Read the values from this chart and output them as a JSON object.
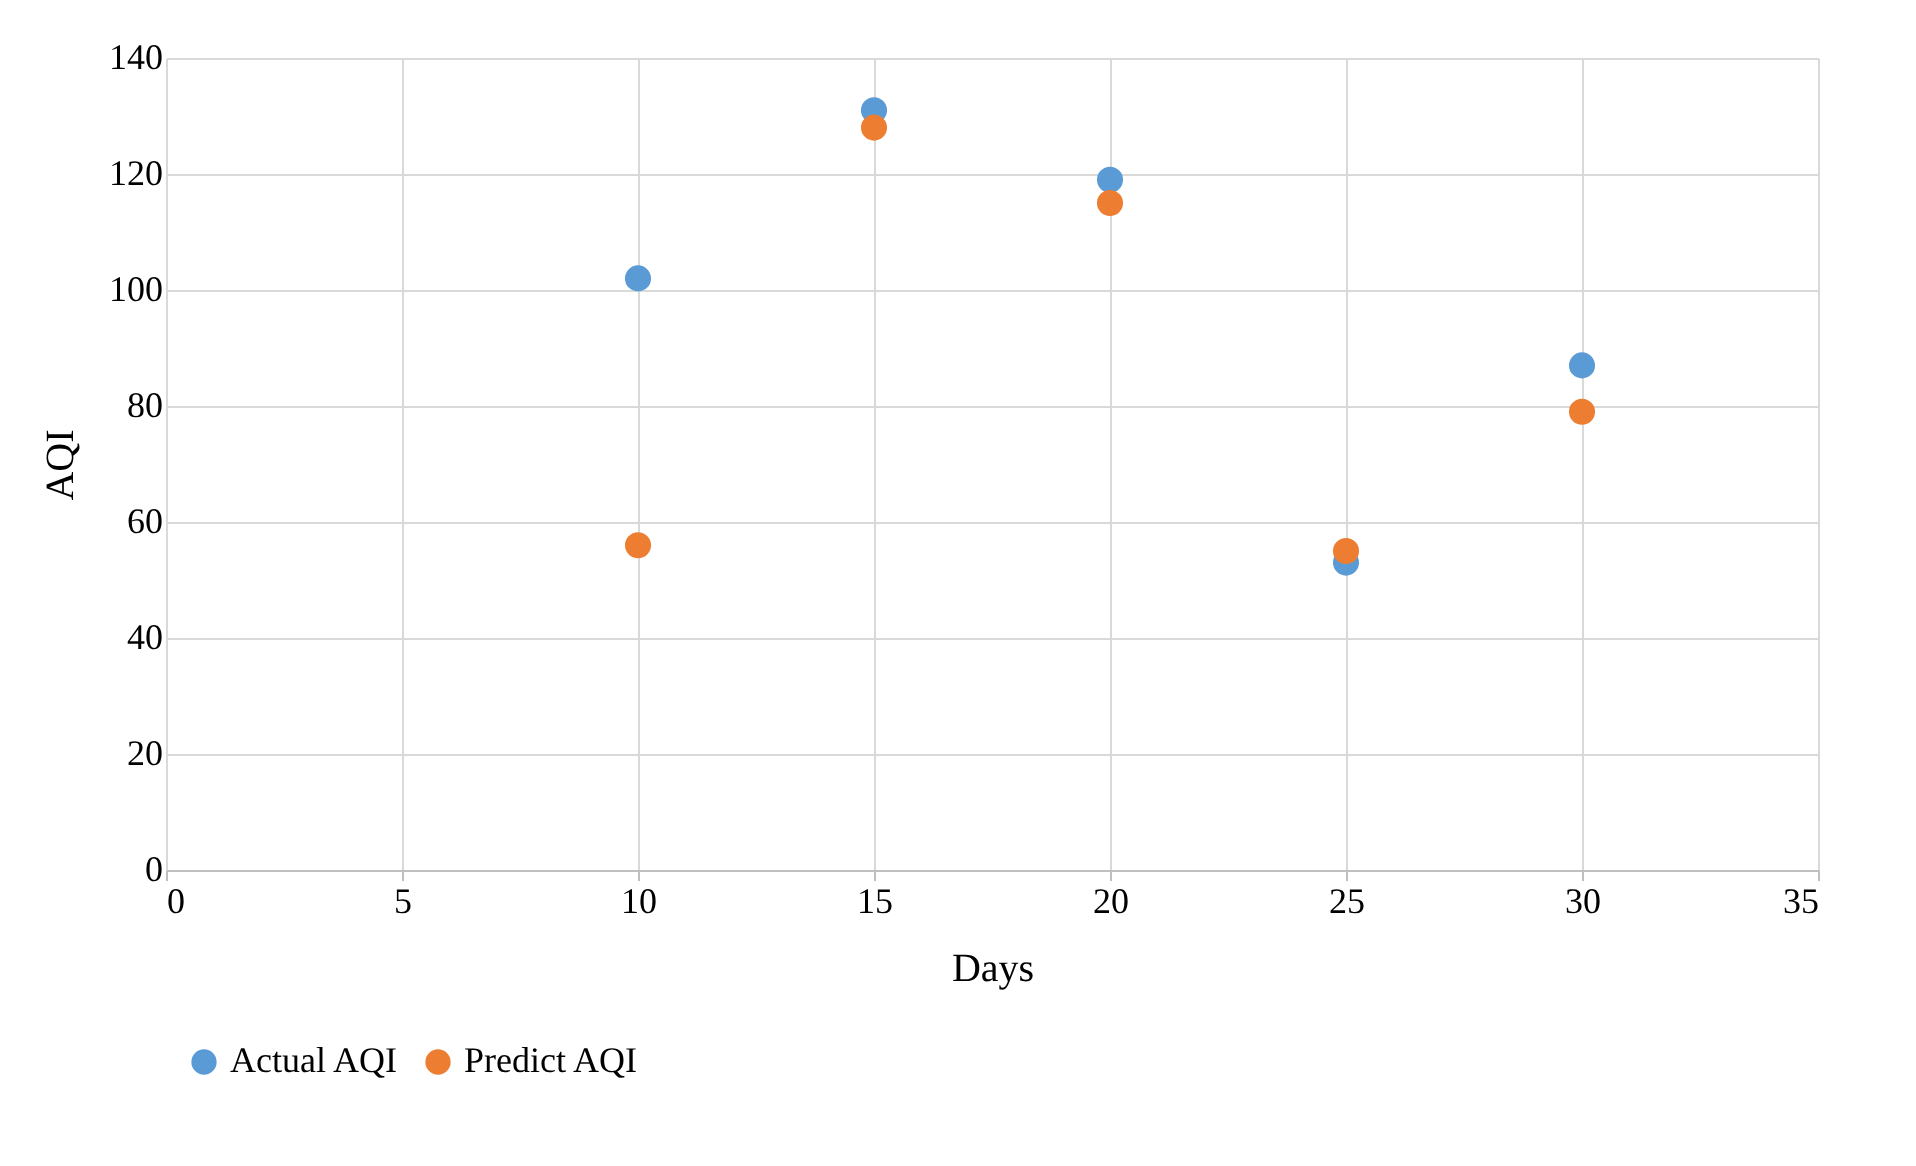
{
  "chart_data": {
    "type": "scatter",
    "xlabel": "Days",
    "ylabel": "AQI",
    "x": [
      10,
      15,
      20,
      25,
      30
    ],
    "series": [
      {
        "name": "Actual AQI",
        "color": "#5b9bd5",
        "values": [
          102,
          131,
          119,
          53,
          87
        ]
      },
      {
        "name": "Predict AQI",
        "color": "#ed7d31",
        "values": [
          56,
          128,
          115,
          55,
          79
        ]
      }
    ],
    "xlim": [
      0,
      35
    ],
    "xticks": [
      0,
      5,
      10,
      15,
      20,
      25,
      30,
      35
    ],
    "ylim": [
      0,
      140
    ],
    "yticks": [
      0,
      20,
      40,
      60,
      80,
      100,
      120,
      140
    ],
    "grid": true,
    "legend": "bottom",
    "marker": "circle"
  }
}
